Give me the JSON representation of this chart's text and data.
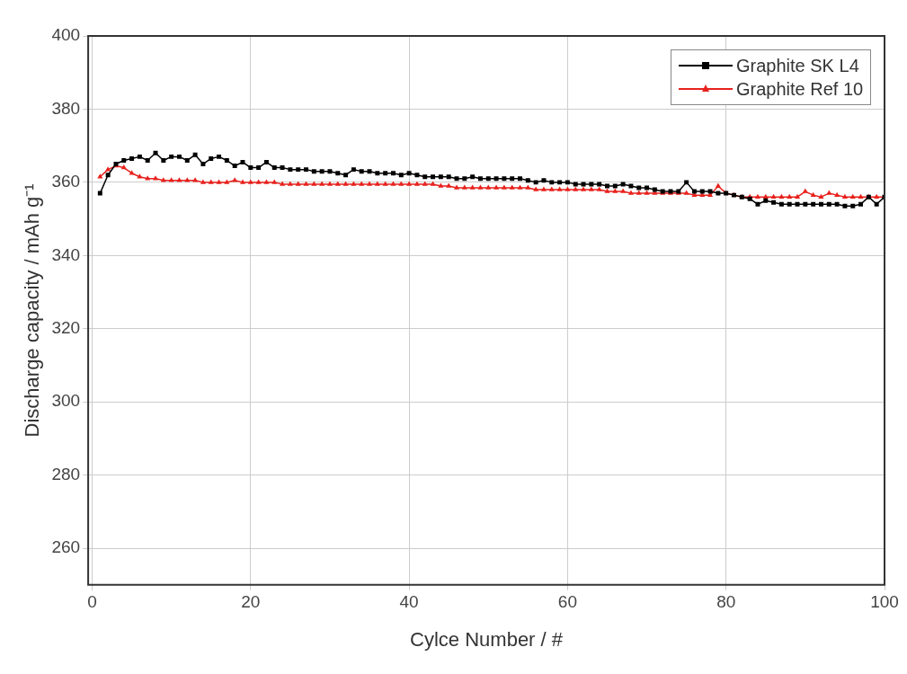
{
  "chart_data": {
    "type": "line",
    "xlabel": "Cylce Number / #",
    "ylabel": "Discharge capacity / mAh g⁻¹",
    "xlim": [
      -0.5,
      100
    ],
    "xticks": [
      0,
      20,
      40,
      60,
      80,
      100
    ],
    "ylim": [
      250,
      400
    ],
    "yticks": [
      260,
      280,
      300,
      320,
      340,
      360,
      380,
      400
    ],
    "grid": true,
    "legend": "top right",
    "line_style": "solid",
    "series": [
      {
        "name": "Graphite SK L4",
        "color": "#000000",
        "marker": "square",
        "x": [
          1,
          2,
          3,
          4,
          5,
          6,
          7,
          8,
          9,
          10,
          11,
          12,
          13,
          14,
          15,
          16,
          17,
          18,
          19,
          20,
          21,
          22,
          23,
          24,
          25,
          26,
          27,
          28,
          29,
          30,
          31,
          32,
          33,
          34,
          35,
          36,
          37,
          38,
          39,
          40,
          41,
          42,
          43,
          44,
          45,
          46,
          47,
          48,
          49,
          50,
          51,
          52,
          53,
          54,
          55,
          56,
          57,
          58,
          59,
          60,
          61,
          62,
          63,
          64,
          65,
          66,
          67,
          68,
          69,
          70,
          71,
          72,
          73,
          74,
          75,
          76,
          77,
          78,
          79,
          80,
          81,
          82,
          83,
          84,
          85,
          86,
          87,
          88,
          89,
          90,
          91,
          92,
          93,
          94,
          95,
          96,
          97,
          98,
          99,
          100
        ],
        "values": [
          357,
          362,
          365,
          366,
          366.5,
          367,
          366,
          368,
          366,
          367,
          367,
          366,
          367.5,
          365,
          366.5,
          367,
          366,
          364.5,
          365.5,
          364,
          364,
          365.5,
          364,
          364,
          363.5,
          363.5,
          363.5,
          363,
          363,
          363,
          362.5,
          362,
          363.5,
          363,
          363,
          362.5,
          362.5,
          362.5,
          362,
          362.5,
          362,
          361.5,
          361.5,
          361.5,
          361.5,
          361,
          361,
          361.5,
          361,
          361,
          361,
          361,
          361,
          361,
          360.5,
          360,
          360.5,
          360,
          360,
          360,
          359.5,
          359.5,
          359.5,
          359.5,
          359,
          359,
          359.5,
          359,
          358.5,
          358.5,
          358,
          357.5,
          357.5,
          357.5,
          360,
          357.5,
          357.5,
          357.5,
          357,
          357,
          356.5,
          356,
          355.5,
          354,
          355,
          354.5,
          354,
          354,
          354,
          354,
          354,
          354,
          354,
          354,
          353.5,
          353.5,
          354,
          356,
          354,
          356
        ]
      },
      {
        "name": "Graphite Ref 10",
        "color": "#e8211c",
        "marker": "triangle",
        "x": [
          1,
          2,
          3,
          4,
          5,
          6,
          7,
          8,
          9,
          10,
          11,
          12,
          13,
          14,
          15,
          16,
          17,
          18,
          19,
          20,
          21,
          22,
          23,
          24,
          25,
          26,
          27,
          28,
          29,
          30,
          31,
          32,
          33,
          34,
          35,
          36,
          37,
          38,
          39,
          40,
          41,
          42,
          43,
          44,
          45,
          46,
          47,
          48,
          49,
          50,
          51,
          52,
          53,
          54,
          55,
          56,
          57,
          58,
          59,
          60,
          61,
          62,
          63,
          64,
          65,
          66,
          67,
          68,
          69,
          70,
          71,
          72,
          73,
          74,
          75,
          76,
          77,
          78,
          79,
          80,
          81,
          82,
          83,
          84,
          85,
          86,
          87,
          88,
          89,
          90,
          91,
          92,
          93,
          94,
          95,
          96,
          97,
          98,
          99,
          100
        ],
        "values": [
          361.5,
          363.5,
          364.5,
          364,
          362.5,
          361.5,
          361,
          361,
          360.5,
          360.5,
          360.5,
          360.5,
          360.5,
          360,
          360,
          360,
          360,
          360.5,
          360,
          360,
          360,
          360,
          360,
          359.5,
          359.5,
          359.5,
          359.5,
          359.5,
          359.5,
          359.5,
          359.5,
          359.5,
          359.5,
          359.5,
          359.5,
          359.5,
          359.5,
          359.5,
          359.5,
          359.5,
          359.5,
          359.5,
          359.5,
          359,
          359,
          358.5,
          358.5,
          358.5,
          358.5,
          358.5,
          358.5,
          358.5,
          358.5,
          358.5,
          358.5,
          358,
          358,
          358,
          358,
          358,
          358,
          358,
          358,
          358,
          357.5,
          357.5,
          357.5,
          357,
          357,
          357,
          357,
          357,
          357,
          357,
          357,
          356.5,
          356.5,
          356.5,
          359,
          357,
          356.5,
          356,
          356,
          356,
          356,
          356,
          356,
          356,
          356,
          357.5,
          356.5,
          356,
          357,
          356.5,
          356,
          356,
          356,
          356,
          356,
          356
        ]
      }
    ]
  }
}
